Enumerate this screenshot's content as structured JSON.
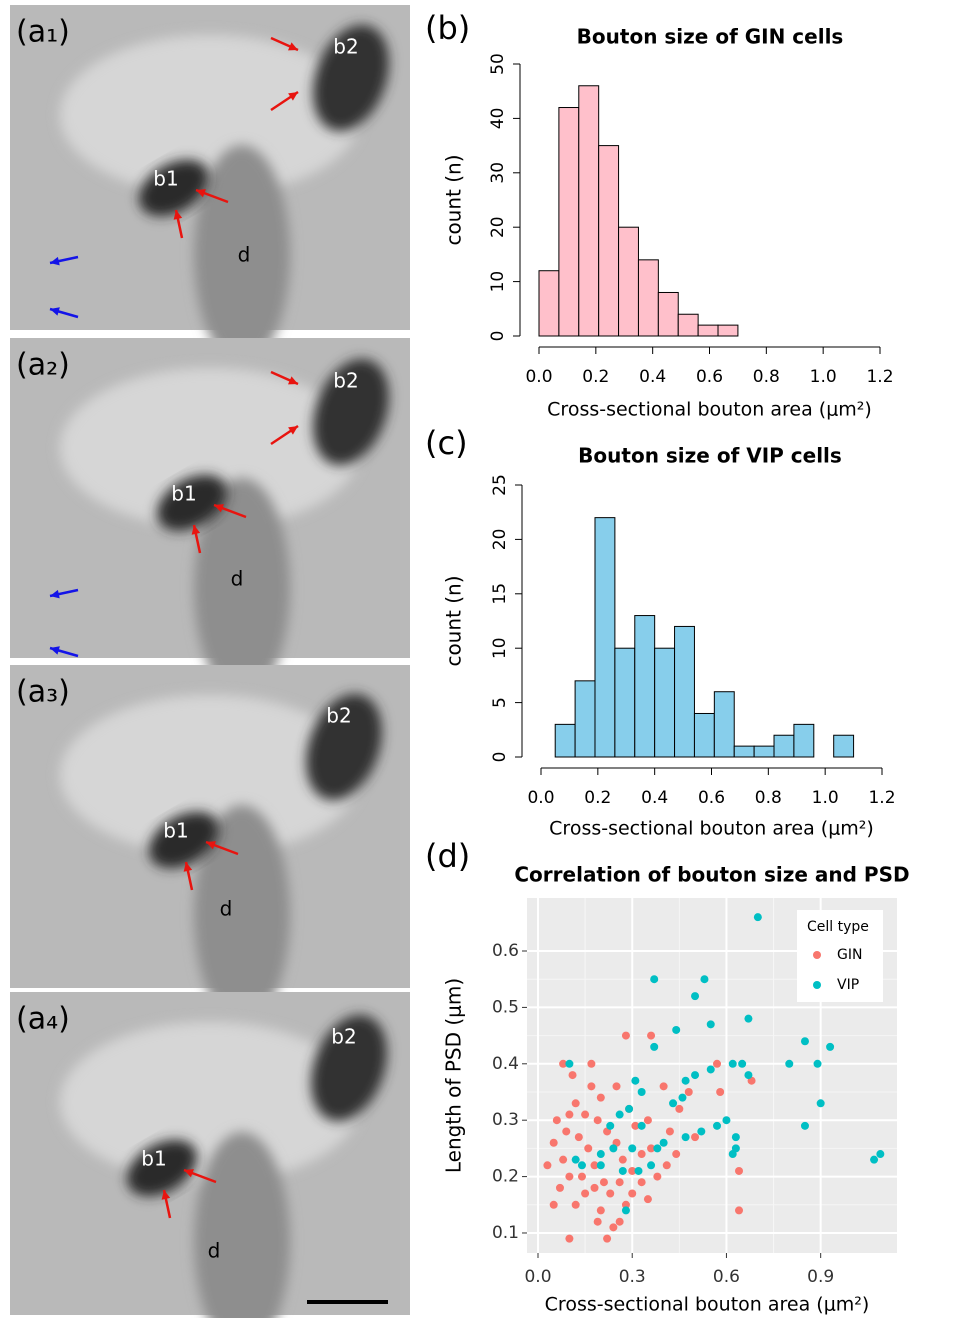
{
  "images": [
    {
      "label": "(a₁)",
      "annotations": [
        "b1",
        "b2",
        "d"
      ]
    },
    {
      "label": "(a₂)",
      "annotations": [
        "b1",
        "b2",
        "d"
      ]
    },
    {
      "label": "(a₃)",
      "annotations": [
        "b1",
        "b2",
        "d"
      ]
    },
    {
      "label": "(a₄)",
      "annotations": [
        "b1",
        "b2",
        "d"
      ]
    }
  ],
  "chart_data": [
    {
      "type": "histogram",
      "panel_label": "(b)",
      "title": "Bouton size of GIN cells",
      "x_label": "Cross-sectional bouton area (μm²)",
      "y_label": "count (n)",
      "color": "#ffc0cb",
      "bins": [
        0,
        0.07,
        0.14,
        0.21,
        0.28,
        0.35,
        0.42,
        0.49,
        0.56,
        0.63,
        0.7
      ],
      "counts": [
        12,
        42,
        46,
        35,
        20,
        14,
        8,
        4,
        2,
        2
      ],
      "xlim": [
        0,
        1.2
      ],
      "ylim": [
        0,
        50
      ],
      "xticks": [
        {
          "value": 0,
          "label": "0.0"
        },
        0.2,
        0.4,
        0.6,
        0.8,
        {
          "value": 1,
          "label": "1.0"
        },
        1.2
      ],
      "yticks": [
        0,
        10,
        20,
        30,
        40,
        50
      ]
    },
    {
      "type": "histogram",
      "panel_label": "(c)",
      "title": "Bouton size of VIP cells",
      "x_label": "Cross-sectional bouton area (μm²)",
      "y_label": "count (n)",
      "color": "#87ceeb",
      "bins": [
        0.05,
        0.12,
        0.19,
        0.26,
        0.33,
        0.4,
        0.47,
        0.54,
        0.61,
        0.68,
        0.75,
        0.82,
        0.89,
        0.96,
        1.03,
        1.1
      ],
      "counts": [
        3,
        7,
        22,
        10,
        13,
        10,
        12,
        4,
        6,
        1,
        1,
        2,
        3,
        0,
        2
      ],
      "xlim": [
        0,
        1.2
      ],
      "ylim": [
        0,
        25
      ],
      "xticks": [
        {
          "value": 0,
          "label": "0.0"
        },
        0.2,
        0.4,
        0.6,
        0.8,
        {
          "value": 1,
          "label": "1.0"
        },
        1.2
      ],
      "yticks": [
        0,
        5,
        10,
        15,
        20,
        25
      ]
    },
    {
      "type": "scatter",
      "panel_label": "(d)",
      "title": "Correlation of bouton size and PSD",
      "x_label": "Cross-sectional bouton area (μm²)",
      "y_label": "Length of PSD (μm)",
      "legend_title": "Cell type",
      "legend": "top-right",
      "grid": true,
      "xlim": [
        -0.035,
        1.143
      ],
      "ylim": [
        0.0645,
        0.694
      ],
      "xticks": [
        {
          "value": 0,
          "label": "0.0"
        },
        0.3,
        0.6,
        0.9
      ],
      "yticks": [
        0.1,
        0.2,
        0.3,
        0.4,
        0.5,
        0.6
      ],
      "series": [
        {
          "name": "GIN",
          "color": "#f8766d",
          "x": [
            0.08,
            0.17,
            0.28,
            0.36,
            0.68,
            0.58,
            0.57,
            0.64,
            0.64,
            0.1,
            0.22,
            0.24,
            0.05,
            0.12,
            0.15,
            0.2,
            0.25,
            0.1,
            0.05,
            0.03,
            0.07,
            0.1,
            0.13,
            0.18,
            0.22,
            0.26,
            0.3,
            0.33,
            0.38,
            0.42,
            0.45,
            0.5,
            0.35,
            0.4,
            0.48,
            0.15,
            0.19,
            0.28,
            0.33,
            0.09,
            0.16,
            0.21,
            0.27,
            0.06,
            0.12,
            0.31,
            0.36,
            0.23,
            0.17,
            0.29,
            0.41,
            0.08,
            0.14,
            0.19,
            0.25,
            0.3,
            0.35,
            0.44,
            0.11,
            0.2,
            0.26,
            0.18
          ],
          "y": [
            0.4,
            0.4,
            0.45,
            0.45,
            0.37,
            0.35,
            0.4,
            0.14,
            0.21,
            0.09,
            0.09,
            0.11,
            0.15,
            0.33,
            0.31,
            0.34,
            0.36,
            0.31,
            0.26,
            0.22,
            0.18,
            0.2,
            0.27,
            0.22,
            0.28,
            0.19,
            0.17,
            0.24,
            0.2,
            0.28,
            0.32,
            0.27,
            0.3,
            0.36,
            0.35,
            0.17,
            0.12,
            0.15,
            0.19,
            0.28,
            0.25,
            0.19,
            0.23,
            0.3,
            0.15,
            0.29,
            0.25,
            0.17,
            0.36,
            0.32,
            0.22,
            0.23,
            0.2,
            0.3,
            0.26,
            0.21,
            0.16,
            0.24,
            0.38,
            0.14,
            0.12,
            0.18
          ]
        },
        {
          "name": "VIP",
          "color": "#00bfc4",
          "x": [
            0.7,
            0.37,
            0.53,
            0.5,
            0.55,
            0.44,
            0.67,
            0.37,
            0.85,
            0.93,
            0.62,
            0.8,
            0.65,
            0.89,
            0.67,
            0.5,
            0.55,
            0.47,
            0.31,
            0.33,
            0.46,
            0.43,
            0.9,
            0.6,
            0.85,
            0.29,
            0.26,
            0.23,
            0.57,
            0.63,
            0.47,
            0.38,
            0.24,
            0.3,
            0.63,
            0.12,
            0.14,
            0.2,
            0.27,
            0.32,
            0.36,
            0.62,
            0.2,
            0.1,
            1.09,
            1.07,
            0.28,
            0.4,
            0.52,
            0.33
          ],
          "y": [
            0.66,
            0.55,
            0.55,
            0.52,
            0.47,
            0.46,
            0.48,
            0.43,
            0.44,
            0.43,
            0.4,
            0.4,
            0.4,
            0.4,
            0.38,
            0.38,
            0.39,
            0.37,
            0.37,
            0.35,
            0.34,
            0.33,
            0.33,
            0.3,
            0.29,
            0.32,
            0.31,
            0.29,
            0.29,
            0.27,
            0.27,
            0.25,
            0.25,
            0.25,
            0.25,
            0.23,
            0.22,
            0.22,
            0.21,
            0.21,
            0.22,
            0.24,
            0.24,
            0.4,
            0.24,
            0.23,
            0.14,
            0.26,
            0.28,
            0.29
          ]
        }
      ]
    }
  ]
}
